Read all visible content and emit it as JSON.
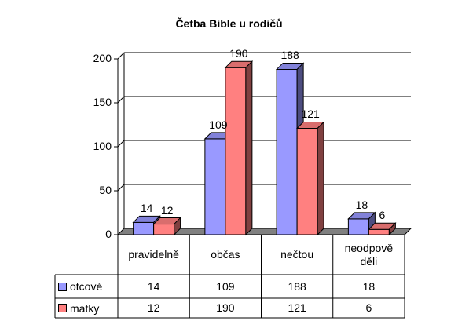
{
  "chart_data": {
    "type": "bar",
    "title": "Četba Bible u rodičů",
    "categories": [
      "pravidelně",
      "občas",
      "nečtou",
      "neodpově děli"
    ],
    "series": [
      {
        "name": "otcové",
        "values": [
          14,
          109,
          188,
          18
        ],
        "color": "#9999ff"
      },
      {
        "name": "matky",
        "values": [
          12,
          190,
          121,
          6
        ],
        "color": "#ff8080"
      }
    ],
    "ylim": [
      0,
      200
    ],
    "yticks": [
      0,
      50,
      100,
      150,
      200
    ],
    "grid": true,
    "data_table": true,
    "style": "3d"
  }
}
